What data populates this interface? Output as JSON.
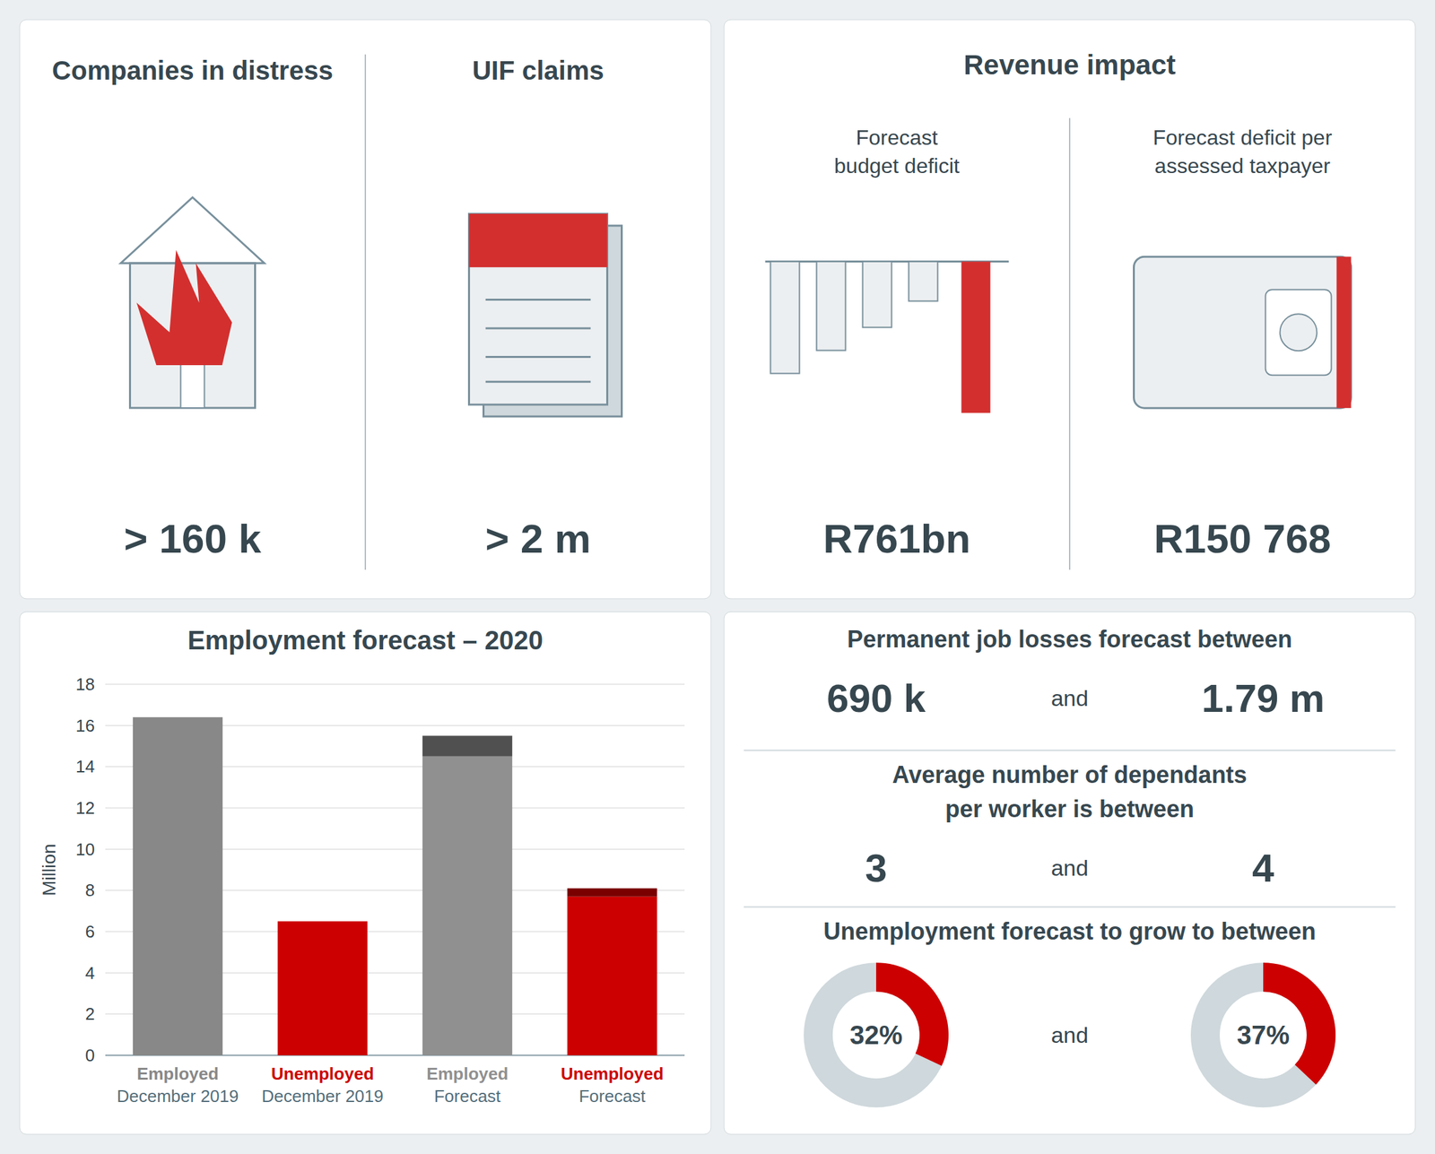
{
  "chart_data": [
    {
      "type": "stat",
      "categories": [
        "Companies in distress",
        "UIF claims"
      ],
      "annotations": [
        "> 160 k",
        "> 2 m"
      ]
    },
    {
      "type": "stat",
      "title": "Revenue impact",
      "categories": [
        "Forecast\nbudget deficit",
        "Forecast deficit per\nassessed taxpayer"
      ],
      "annotations": [
        "R761bn",
        "R150 768"
      ]
    },
    {
      "type": "bar",
      "title": "Employment forecast – 2020",
      "ylabel": "Million",
      "categories": [
        "Employed\nDecember 2019",
        "Unemployed\nDecember 2019",
        "Employed\nForecast",
        "Unemployed\nForecast"
      ],
      "series": [
        {
          "values": [
            16.4,
            6.5,
            14.5,
            7.7
          ],
          "colors": [
            "#888888",
            "#cc0000",
            "#909090",
            "#cc0000"
          ]
        },
        {
          "values": [
            null,
            null,
            1.0,
            0.4
          ],
          "colors": [
            null,
            null,
            "#505050",
            "#7a0000"
          ]
        }
      ],
      "stacked": true,
      "ylim": [
        0,
        18
      ],
      "yticks": [
        0,
        2,
        4,
        6,
        8,
        10,
        12,
        14,
        16,
        18
      ],
      "grid": true
    },
    {
      "type": "stat",
      "title": "Permanent job losses forecast between",
      "annotations": [
        "690 k",
        "and",
        "1.79 m"
      ]
    },
    {
      "type": "stat",
      "title": "Average number of dependants",
      "subtitle": "per worker is between",
      "annotations": [
        "3",
        "and",
        "4"
      ]
    },
    {
      "type": "donut",
      "title": "Unemployment forecast to grow to between",
      "series": [
        {
          "values": [
            32
          ],
          "value_labels": [
            "32%"
          ]
        },
        {
          "values": [
            37
          ],
          "value_labels": [
            "37%"
          ]
        }
      ],
      "annotations": [
        "and"
      ],
      "ylim": [
        0,
        100
      ],
      "color": "#cc0000",
      "data_labels": true
    }
  ]
}
